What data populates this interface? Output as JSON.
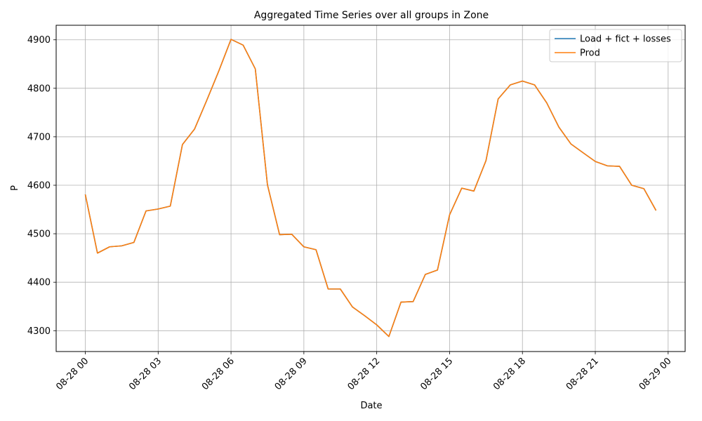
{
  "chart_data": {
    "type": "line",
    "title": "Aggregated Time Series over all groups in Zone",
    "xlabel": "Date",
    "ylabel": "P",
    "x_tick_labels": [
      "08-28 00",
      "08-28 03",
      "08-28 06",
      "08-28 09",
      "08-28 12",
      "08-28 15",
      "08-28 18",
      "08-28 21",
      "08-29 00"
    ],
    "x_tick_hours": [
      0,
      3,
      6,
      9,
      12,
      15,
      18,
      21,
      24
    ],
    "y_ticks": [
      4300,
      4400,
      4500,
      4600,
      4700,
      4800,
      4900
    ],
    "xlim_hours": [
      -1.2,
      24.7
    ],
    "ylim": [
      4257,
      4930
    ],
    "grid": true,
    "legend_position": "top-right",
    "x_hours": [
      0,
      0.5,
      1,
      1.5,
      2,
      2.5,
      3,
      3.5,
      4,
      4.5,
      5,
      5.5,
      6,
      6.5,
      7,
      7.5,
      8,
      8.5,
      9,
      9.5,
      10,
      10.5,
      11,
      11.5,
      12,
      12.5,
      13,
      13.5,
      14,
      14.5,
      15,
      15.5,
      16,
      16.5,
      17,
      17.5,
      18,
      18.5,
      19,
      19.5,
      20,
      20.5,
      21,
      21.5,
      22,
      22.5,
      23,
      23.5
    ],
    "series": [
      {
        "name": "Load + fict + losses",
        "color": "#1f77b4",
        "values": [
          4581,
          4460,
          4473,
          4475,
          4482,
          4547,
          4551,
          4557,
          4684,
          4716,
          4775,
          4836,
          4901,
          4889,
          4840,
          4601,
          4498,
          4499,
          4473,
          4467,
          4386,
          4386,
          4349,
          4331,
          4312,
          4288,
          4359,
          4360,
          4416,
          4425,
          4539,
          4594,
          4588,
          4651,
          4778,
          4807,
          4815,
          4807,
          4770,
          4720,
          4685,
          4667,
          4649,
          4640,
          4639,
          4600,
          4593,
          4548
        ]
      },
      {
        "name": "Prod",
        "color": "#ff7f0e",
        "values": [
          4581,
          4460,
          4473,
          4475,
          4482,
          4547,
          4551,
          4557,
          4684,
          4716,
          4775,
          4836,
          4901,
          4889,
          4840,
          4601,
          4498,
          4499,
          4473,
          4467,
          4386,
          4386,
          4349,
          4331,
          4312,
          4288,
          4359,
          4360,
          4416,
          4425,
          4539,
          4594,
          4588,
          4651,
          4778,
          4807,
          4815,
          4807,
          4770,
          4720,
          4685,
          4667,
          4649,
          4640,
          4639,
          4600,
          4593,
          4548
        ]
      }
    ]
  }
}
